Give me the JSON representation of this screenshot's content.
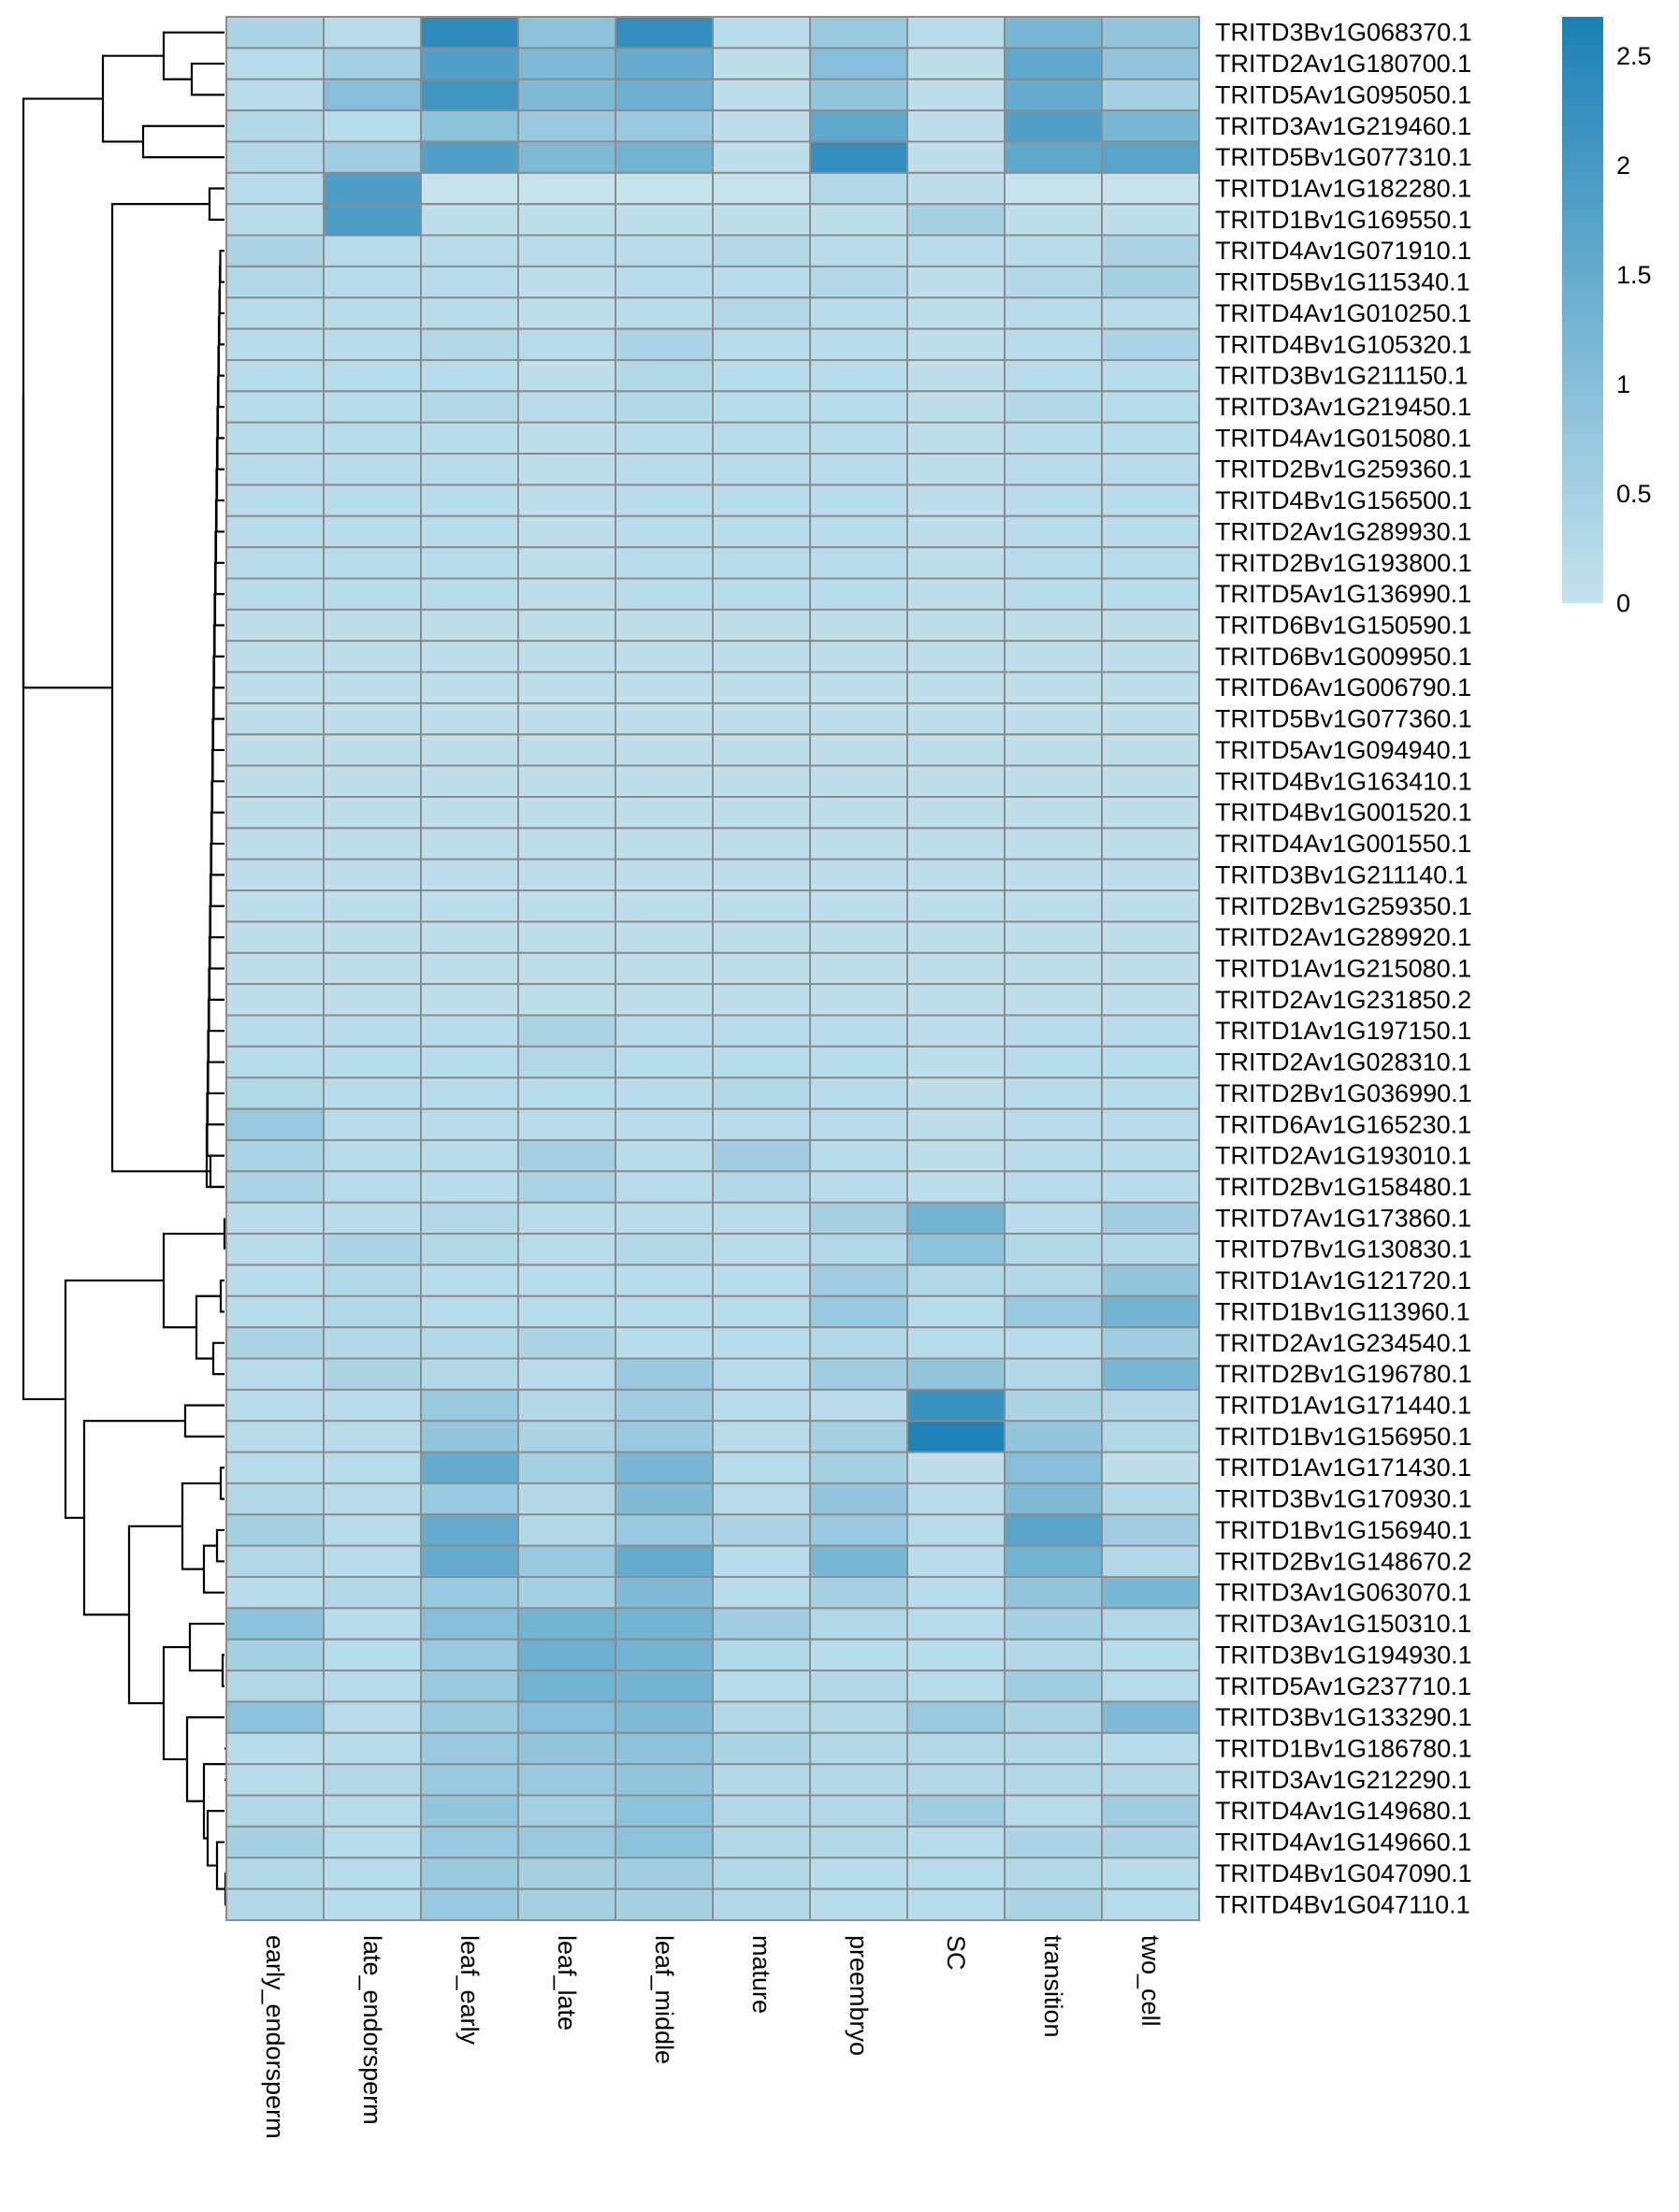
{
  "chart_data": {
    "type": "heatmap",
    "columns": [
      "early_endorsperm",
      "late_endorsperm",
      "leaf_early",
      "leaf_late",
      "leaf_middle",
      "mature",
      "preembryo",
      "SC",
      "transition",
      "two_cell"
    ],
    "rows": [
      "TRITD3Bv1G068370.1",
      "TRITD2Av1G180700.1",
      "TRITD5Av1G095050.1",
      "TRITD3Av1G219460.1",
      "TRITD5Bv1G077310.1",
      "TRITD1Av1G182280.1",
      "TRITD1Bv1G169550.1",
      "TRITD4Av1G071910.1",
      "TRITD5Bv1G115340.1",
      "TRITD4Av1G010250.1",
      "TRITD4Bv1G105320.1",
      "TRITD3Bv1G211150.1",
      "TRITD3Av1G219450.1",
      "TRITD4Av1G015080.1",
      "TRITD2Bv1G259360.1",
      "TRITD4Bv1G156500.1",
      "TRITD2Av1G289930.1",
      "TRITD2Bv1G193800.1",
      "TRITD5Av1G136990.1",
      "TRITD6Bv1G150590.1",
      "TRITD6Bv1G009950.1",
      "TRITD6Av1G006790.1",
      "TRITD5Bv1G077360.1",
      "TRITD5Av1G094940.1",
      "TRITD4Bv1G163410.1",
      "TRITD4Bv1G001520.1",
      "TRITD4Av1G001550.1",
      "TRITD3Bv1G211140.1",
      "TRITD2Bv1G259350.1",
      "TRITD2Av1G289920.1",
      "TRITD1Av1G215080.1",
      "TRITD2Av1G231850.2",
      "TRITD1Av1G197150.1",
      "TRITD2Av1G028310.1",
      "TRITD2Bv1G036990.1",
      "TRITD6Av1G165230.1",
      "TRITD2Av1G193010.1",
      "TRITD2Bv1G158480.1",
      "TRITD7Av1G173860.1",
      "TRITD7Bv1G130830.1",
      "TRITD1Av1G121720.1",
      "TRITD1Bv1G113960.1",
      "TRITD2Av1G234540.1",
      "TRITD2Bv1G196780.1",
      "TRITD1Av1G171440.1",
      "TRITD1Bv1G156950.1",
      "TRITD1Av1G171430.1",
      "TRITD3Bv1G170930.1",
      "TRITD1Bv1G156940.1",
      "TRITD2Bv1G148670.2",
      "TRITD3Av1G063070.1",
      "TRITD3Av1G150310.1",
      "TRITD3Bv1G194930.1",
      "TRITD5Av1G237710.1",
      "TRITD3Bv1G133290.1",
      "TRITD1Bv1G186780.1",
      "TRITD3Av1G212290.1",
      "TRITD4Av1G149680.1",
      "TRITD4Av1G149660.1",
      "TRITD4Bv1G047090.1",
      "TRITD4Bv1G047110.1"
    ],
    "values": [
      [
        0.4,
        0.2,
        2.4,
        0.9,
        2.3,
        0.2,
        0.7,
        0.2,
        1.2,
        0.8
      ],
      [
        0.2,
        0.5,
        1.8,
        1.1,
        1.5,
        0.1,
        1.0,
        0.1,
        1.6,
        0.8
      ],
      [
        0.2,
        1.0,
        2.1,
        1.1,
        1.4,
        0.1,
        0.8,
        0.1,
        1.5,
        0.5
      ],
      [
        0.3,
        0.2,
        0.9,
        0.7,
        0.7,
        0.1,
        1.6,
        0.1,
        1.8,
        1.2
      ],
      [
        0.3,
        0.6,
        1.8,
        1.1,
        1.3,
        0.1,
        2.3,
        0.1,
        1.6,
        1.7
      ],
      [
        0.2,
        1.9,
        0.0,
        0.0,
        0.0,
        0.0,
        0.3,
        0.1,
        0.0,
        0.0
      ],
      [
        0.2,
        1.9,
        0.1,
        0.1,
        0.1,
        0.1,
        0.1,
        0.5,
        0.1,
        0.1
      ],
      [
        0.4,
        0.2,
        0.2,
        0.2,
        0.2,
        0.3,
        0.2,
        0.2,
        0.2,
        0.4
      ],
      [
        0.3,
        0.2,
        0.2,
        0.1,
        0.2,
        0.2,
        0.3,
        0.1,
        0.3,
        0.5
      ],
      [
        0.2,
        0.2,
        0.2,
        0.1,
        0.2,
        0.3,
        0.2,
        0.1,
        0.2,
        0.2
      ],
      [
        0.2,
        0.2,
        0.3,
        0.2,
        0.4,
        0.2,
        0.2,
        0.1,
        0.2,
        0.4
      ],
      [
        0.2,
        0.2,
        0.2,
        0.1,
        0.3,
        0.2,
        0.2,
        0.1,
        0.2,
        0.2
      ],
      [
        0.2,
        0.2,
        0.3,
        0.2,
        0.3,
        0.2,
        0.2,
        0.1,
        0.3,
        0.2
      ],
      [
        0.2,
        0.2,
        0.2,
        0.1,
        0.2,
        0.2,
        0.2,
        0.1,
        0.2,
        0.2
      ],
      [
        0.2,
        0.2,
        0.2,
        0.1,
        0.2,
        0.2,
        0.2,
        0.1,
        0.2,
        0.2
      ],
      [
        0.2,
        0.2,
        0.2,
        0.1,
        0.2,
        0.2,
        0.2,
        0.1,
        0.2,
        0.2
      ],
      [
        0.2,
        0.2,
        0.2,
        0.1,
        0.2,
        0.2,
        0.2,
        0.1,
        0.2,
        0.2
      ],
      [
        0.2,
        0.2,
        0.2,
        0.1,
        0.2,
        0.2,
        0.2,
        0.1,
        0.2,
        0.2
      ],
      [
        0.2,
        0.2,
        0.2,
        0.1,
        0.2,
        0.2,
        0.2,
        0.1,
        0.2,
        0.2
      ],
      [
        0.1,
        0.1,
        0.1,
        0.1,
        0.1,
        0.1,
        0.1,
        0.1,
        0.1,
        0.1
      ],
      [
        0.1,
        0.1,
        0.1,
        0.1,
        0.1,
        0.1,
        0.1,
        0.1,
        0.1,
        0.1
      ],
      [
        0.1,
        0.1,
        0.1,
        0.1,
        0.1,
        0.1,
        0.1,
        0.1,
        0.1,
        0.1
      ],
      [
        0.1,
        0.1,
        0.1,
        0.1,
        0.1,
        0.1,
        0.1,
        0.1,
        0.1,
        0.1
      ],
      [
        0.1,
        0.1,
        0.1,
        0.1,
        0.1,
        0.1,
        0.1,
        0.1,
        0.1,
        0.1
      ],
      [
        0.1,
        0.1,
        0.1,
        0.1,
        0.1,
        0.1,
        0.1,
        0.1,
        0.1,
        0.1
      ],
      [
        0.1,
        0.1,
        0.1,
        0.1,
        0.1,
        0.1,
        0.1,
        0.1,
        0.1,
        0.1
      ],
      [
        0.1,
        0.1,
        0.1,
        0.1,
        0.1,
        0.1,
        0.1,
        0.1,
        0.1,
        0.1
      ],
      [
        0.1,
        0.1,
        0.1,
        0.1,
        0.1,
        0.1,
        0.1,
        0.1,
        0.1,
        0.1
      ],
      [
        0.1,
        0.1,
        0.1,
        0.1,
        0.1,
        0.1,
        0.1,
        0.1,
        0.1,
        0.1
      ],
      [
        0.1,
        0.1,
        0.1,
        0.1,
        0.1,
        0.1,
        0.1,
        0.1,
        0.1,
        0.1
      ],
      [
        0.1,
        0.1,
        0.1,
        0.1,
        0.1,
        0.1,
        0.1,
        0.1,
        0.1,
        0.1
      ],
      [
        0.1,
        0.1,
        0.1,
        0.1,
        0.1,
        0.1,
        0.1,
        0.1,
        0.1,
        0.1
      ],
      [
        0.2,
        0.2,
        0.2,
        0.4,
        0.2,
        0.2,
        0.2,
        0.1,
        0.2,
        0.2
      ],
      [
        0.2,
        0.2,
        0.2,
        0.3,
        0.2,
        0.2,
        0.2,
        0.1,
        0.2,
        0.2
      ],
      [
        0.3,
        0.2,
        0.2,
        0.2,
        0.2,
        0.3,
        0.2,
        0.1,
        0.2,
        0.2
      ],
      [
        0.7,
        0.2,
        0.2,
        0.2,
        0.2,
        0.2,
        0.2,
        0.1,
        0.2,
        0.2
      ],
      [
        0.4,
        0.2,
        0.2,
        0.5,
        0.2,
        0.6,
        0.2,
        0.1,
        0.2,
        0.2
      ],
      [
        0.4,
        0.2,
        0.2,
        0.4,
        0.2,
        0.3,
        0.2,
        0.1,
        0.2,
        0.2
      ],
      [
        0.2,
        0.2,
        0.3,
        0.2,
        0.2,
        0.2,
        0.5,
        1.3,
        0.2,
        0.6
      ],
      [
        0.2,
        0.4,
        0.3,
        0.2,
        0.3,
        0.2,
        0.3,
        0.9,
        0.3,
        0.3
      ],
      [
        0.2,
        0.3,
        0.2,
        0.2,
        0.2,
        0.2,
        0.6,
        0.3,
        0.3,
        0.8
      ],
      [
        0.2,
        0.3,
        0.2,
        0.2,
        0.2,
        0.2,
        0.7,
        0.2,
        0.7,
        1.3
      ],
      [
        0.4,
        0.3,
        0.3,
        0.4,
        0.2,
        0.2,
        0.3,
        0.2,
        0.2,
        0.6
      ],
      [
        0.2,
        0.4,
        0.3,
        0.2,
        0.7,
        0.2,
        0.6,
        0.8,
        0.3,
        1.2
      ],
      [
        0.2,
        0.2,
        0.7,
        0.3,
        0.6,
        0.2,
        0.2,
        2.2,
        0.4,
        0.3
      ],
      [
        0.2,
        0.2,
        0.8,
        0.4,
        0.7,
        0.2,
        0.5,
        2.6,
        0.8,
        0.3
      ],
      [
        0.2,
        0.2,
        1.5,
        0.5,
        1.2,
        0.2,
        0.5,
        0.1,
        1.0,
        0.1
      ],
      [
        0.3,
        0.2,
        0.7,
        0.3,
        1.1,
        0.2,
        0.8,
        0.2,
        1.1,
        0.3
      ],
      [
        0.5,
        0.2,
        1.5,
        0.3,
        0.7,
        0.4,
        0.7,
        0.2,
        1.7,
        0.6
      ],
      [
        0.3,
        0.2,
        1.5,
        0.7,
        1.5,
        0.2,
        1.2,
        0.2,
        1.3,
        0.3
      ],
      [
        0.2,
        0.3,
        0.7,
        0.5,
        1.1,
        0.2,
        0.5,
        0.2,
        0.8,
        1.2
      ],
      [
        0.9,
        0.2,
        1.0,
        1.3,
        1.3,
        0.6,
        0.3,
        0.2,
        0.5,
        0.3
      ],
      [
        0.5,
        0.2,
        0.7,
        1.4,
        1.3,
        0.3,
        0.2,
        0.2,
        0.3,
        0.2
      ],
      [
        0.3,
        0.2,
        0.7,
        1.3,
        1.3,
        0.2,
        0.3,
        0.2,
        0.6,
        0.2
      ],
      [
        0.9,
        0.2,
        0.7,
        1.0,
        1.1,
        0.3,
        0.3,
        0.7,
        0.4,
        1.1
      ],
      [
        0.2,
        0.2,
        0.7,
        0.8,
        0.9,
        0.4,
        0.3,
        0.3,
        0.3,
        0.2
      ],
      [
        0.2,
        0.3,
        0.7,
        0.7,
        0.8,
        0.3,
        0.3,
        0.3,
        0.3,
        0.3
      ],
      [
        0.3,
        0.2,
        0.8,
        0.5,
        0.9,
        0.3,
        0.3,
        0.6,
        0.2,
        0.6
      ],
      [
        0.5,
        0.2,
        0.7,
        0.7,
        0.9,
        0.3,
        0.3,
        0.2,
        0.4,
        0.4
      ],
      [
        0.3,
        0.2,
        0.7,
        0.5,
        0.6,
        0.3,
        0.2,
        0.2,
        0.3,
        0.2
      ],
      [
        0.3,
        0.2,
        0.7,
        0.5,
        0.5,
        0.3,
        0.2,
        0.2,
        0.4,
        0.2
      ]
    ],
    "color_scale": {
      "min": 0,
      "max": 2.68,
      "low_color": "#c6e3ee",
      "high_color": "#1b80b5",
      "ticks": [
        0,
        0.5,
        1,
        1.5,
        2,
        2.5
      ],
      "tick_labels": [
        "0",
        "0.5",
        "1",
        "1.5",
        "2",
        "2.5"
      ]
    },
    "cell_border_color": "#8c8c8c",
    "legend_position": "top-right",
    "row_dendrogram": "left",
    "title": "",
    "xlabel": "",
    "ylabel": ""
  }
}
